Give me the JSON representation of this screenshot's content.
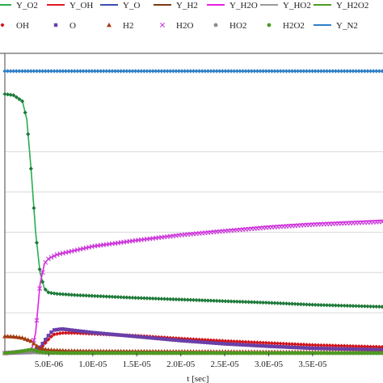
{
  "chart_data": {
    "type": "line",
    "title": "",
    "xlabel": "t [sec]",
    "ylabel": "",
    "xlim": [
      0,
      4.3e-05
    ],
    "ylim": [
      0,
      0.7
    ],
    "grid": true,
    "legend_position": "top",
    "x_ticks": [
      {
        "value": 5e-06,
        "label": "5.0E-06"
      },
      {
        "value": 1e-05,
        "label": "1.0E-05"
      },
      {
        "value": 1.5e-05,
        "label": "1.5E-05"
      },
      {
        "value": 2e-05,
        "label": "2.0E-05"
      },
      {
        "value": 2.5e-05,
        "label": "2.5E-05"
      },
      {
        "value": 3e-05,
        "label": "3.0E-05"
      },
      {
        "value": 3.5e-05,
        "label": "3.5E-05"
      }
    ],
    "y_gridlines": [
      0.1,
      0.2,
      0.3,
      0.4,
      0.5
    ],
    "series": [
      {
        "name": "Y_O2",
        "color": "#27ae4f",
        "style": "line",
        "points": [
          [
            0,
            0.643
          ],
          [
            1e-06,
            0.64
          ],
          [
            2e-06,
            0.625
          ],
          [
            2.5e-06,
            0.58
          ],
          [
            3e-06,
            0.45
          ],
          [
            3.5e-06,
            0.3
          ],
          [
            4e-06,
            0.2
          ],
          [
            4.5e-06,
            0.16
          ],
          [
            5e-06,
            0.15
          ],
          [
            6e-06,
            0.147
          ],
          [
            8e-06,
            0.144
          ],
          [
            1e-05,
            0.142
          ],
          [
            1.5e-05,
            0.137
          ],
          [
            2e-05,
            0.133
          ],
          [
            2.5e-05,
            0.129
          ],
          [
            3e-05,
            0.125
          ],
          [
            3.5e-05,
            0.12
          ],
          [
            4.3e-05,
            0.115
          ]
        ]
      },
      {
        "name": "Y_OH",
        "color": "#e0191f",
        "style": "line",
        "points": [
          [
            0,
            0
          ],
          [
            3e-06,
            0.002
          ],
          [
            4e-06,
            0.01
          ],
          [
            5e-06,
            0.035
          ],
          [
            5.5e-06,
            0.046
          ],
          [
            6.5e-06,
            0.05
          ],
          [
            8e-06,
            0.05
          ],
          [
            1e-05,
            0.048
          ],
          [
            1.5e-05,
            0.043
          ],
          [
            2e-05,
            0.036
          ],
          [
            2.5e-05,
            0.03
          ],
          [
            3e-05,
            0.025
          ],
          [
            3.5e-05,
            0.02
          ],
          [
            4.3e-05,
            0.015
          ]
        ]
      },
      {
        "name": "Y_O",
        "color": "#3a4fb0",
        "style": "line",
        "points": [
          [
            0,
            0
          ],
          [
            3e-06,
            0.002
          ],
          [
            4e-06,
            0.015
          ],
          [
            5e-06,
            0.045
          ],
          [
            5.5e-06,
            0.055
          ],
          [
            6.5e-06,
            0.058
          ],
          [
            8e-06,
            0.055
          ],
          [
            1e-05,
            0.05
          ],
          [
            1.5e-05,
            0.04
          ],
          [
            2e-05,
            0.03
          ],
          [
            2.5e-05,
            0.022
          ],
          [
            3e-05,
            0.016
          ],
          [
            3.5e-05,
            0.011
          ],
          [
            4.3e-05,
            0.007
          ]
        ]
      },
      {
        "name": "Y_H2",
        "color": "#7a3a14",
        "style": "line",
        "points": [
          [
            0,
            0.042
          ],
          [
            1e-06,
            0.041
          ],
          [
            2e-06,
            0.038
          ],
          [
            3e-06,
            0.03
          ],
          [
            3.5e-06,
            0.02
          ],
          [
            4e-06,
            0.012
          ],
          [
            5e-06,
            0.008
          ],
          [
            7e-06,
            0.006
          ],
          [
            1e-05,
            0.005
          ],
          [
            2e-05,
            0.004
          ],
          [
            3e-05,
            0.003
          ],
          [
            4.3e-05,
            0.002
          ]
        ]
      },
      {
        "name": "Y_H2O",
        "color": "#e61ee6",
        "style": "line",
        "points": [
          [
            0,
            0
          ],
          [
            3e-06,
            0.005
          ],
          [
            3.5e-06,
            0.05
          ],
          [
            4e-06,
            0.17
          ],
          [
            4.5e-06,
            0.222
          ],
          [
            5e-06,
            0.235
          ],
          [
            6e-06,
            0.245
          ],
          [
            8e-06,
            0.255
          ],
          [
            1e-05,
            0.265
          ],
          [
            1.5e-05,
            0.28
          ],
          [
            2e-05,
            0.295
          ],
          [
            2.5e-05,
            0.305
          ],
          [
            3e-05,
            0.315
          ],
          [
            3.5e-05,
            0.322
          ],
          [
            4.3e-05,
            0.33
          ]
        ]
      },
      {
        "name": "Y_HO2",
        "color": "#9a9a9a",
        "style": "line",
        "points": [
          [
            0,
            0
          ],
          [
            1e-06,
            0.001
          ],
          [
            2e-06,
            0.002
          ],
          [
            3e-06,
            0.002
          ],
          [
            4e-06,
            0.001
          ],
          [
            5e-06,
            0
          ],
          [
            4.3e-05,
            0
          ]
        ]
      },
      {
        "name": "Y_H2O2",
        "color": "#4e9a22",
        "style": "line",
        "points": [
          [
            0,
            0
          ],
          [
            1e-06,
            0.002
          ],
          [
            2e-06,
            0.005
          ],
          [
            3e-06,
            0.009
          ],
          [
            4e-06,
            0.003
          ],
          [
            5e-06,
            0.001
          ],
          [
            7e-06,
            0
          ],
          [
            4.3e-05,
            0
          ]
        ]
      },
      {
        "name": "Y_N2",
        "color": "#2f7fc8",
        "style": "line",
        "points": [
          [
            0,
            0.7
          ],
          [
            4.3e-05,
            0.7
          ]
        ]
      },
      {
        "name": "OH",
        "color": "#d0141a",
        "style": "marker",
        "marker": "diamond",
        "points": [
          [
            0,
            0
          ],
          [
            3e-06,
            0.002
          ],
          [
            4e-06,
            0.01
          ],
          [
            5e-06,
            0.035
          ],
          [
            5.5e-06,
            0.046
          ],
          [
            6.5e-06,
            0.05
          ],
          [
            8e-06,
            0.05
          ],
          [
            1e-05,
            0.048
          ],
          [
            1.5e-05,
            0.043
          ],
          [
            2e-05,
            0.036
          ],
          [
            2.5e-05,
            0.03
          ],
          [
            3e-05,
            0.025
          ],
          [
            3.5e-05,
            0.02
          ],
          [
            4.3e-05,
            0.015
          ]
        ]
      },
      {
        "name": "O",
        "color": "#6a3fa8",
        "style": "marker",
        "marker": "square",
        "points": [
          [
            0,
            0
          ],
          [
            3e-06,
            0.002
          ],
          [
            4e-06,
            0.015
          ],
          [
            5e-06,
            0.045
          ],
          [
            5.5e-06,
            0.057
          ],
          [
            6.5e-06,
            0.06
          ],
          [
            8e-06,
            0.056
          ],
          [
            1e-05,
            0.051
          ],
          [
            1.5e-05,
            0.041
          ],
          [
            2e-05,
            0.031
          ],
          [
            2.5e-05,
            0.023
          ],
          [
            3e-05,
            0.017
          ],
          [
            3.5e-05,
            0.012
          ],
          [
            4.3e-05,
            0.008
          ]
        ]
      },
      {
        "name": "H2",
        "color": "#a63c12",
        "style": "marker",
        "marker": "triangle",
        "points": [
          [
            0,
            0.042
          ],
          [
            1e-06,
            0.041
          ],
          [
            2e-06,
            0.038
          ],
          [
            3e-06,
            0.03
          ],
          [
            3.5e-06,
            0.02
          ],
          [
            4e-06,
            0.012
          ],
          [
            5e-06,
            0.008
          ],
          [
            7e-06,
            0.006
          ],
          [
            1e-05,
            0.005
          ],
          [
            2e-05,
            0.004
          ],
          [
            3e-05,
            0.003
          ],
          [
            4.3e-05,
            0.002
          ]
        ]
      },
      {
        "name": "H2O",
        "color": "#c83cd8",
        "style": "marker",
        "marker": "cross",
        "points": [
          [
            0,
            0
          ],
          [
            3e-06,
            0.005
          ],
          [
            3.5e-06,
            0.05
          ],
          [
            4e-06,
            0.17
          ],
          [
            4.5e-06,
            0.222
          ],
          [
            5e-06,
            0.235
          ],
          [
            6e-06,
            0.245
          ],
          [
            8e-06,
            0.255
          ],
          [
            1e-05,
            0.265
          ],
          [
            1.5e-05,
            0.28
          ],
          [
            2e-05,
            0.293
          ],
          [
            2.5e-05,
            0.303
          ],
          [
            3e-05,
            0.312
          ],
          [
            3.5e-05,
            0.319
          ],
          [
            4.3e-05,
            0.326
          ]
        ]
      },
      {
        "name": "HO2",
        "color": "#8a8a8a",
        "style": "marker",
        "marker": "circle",
        "points": [
          [
            0,
            0
          ],
          [
            1e-06,
            0.001
          ],
          [
            2e-06,
            0.002
          ],
          [
            3e-06,
            0.002
          ],
          [
            4e-06,
            0.001
          ],
          [
            5e-06,
            0
          ],
          [
            4.3e-05,
            0
          ]
        ]
      },
      {
        "name": "H2O2",
        "color": "#4e9a22",
        "style": "marker",
        "marker": "circle",
        "points": [
          [
            0,
            0
          ],
          [
            1e-06,
            0.002
          ],
          [
            2e-06,
            0.005
          ],
          [
            3e-06,
            0.009
          ],
          [
            4e-06,
            0.003
          ],
          [
            5e-06,
            0.001
          ],
          [
            7e-06,
            0
          ],
          [
            4.3e-05,
            0
          ]
        ]
      },
      {
        "name": "",
        "color": "#1f7a3a",
        "style": "marker",
        "marker": "diamond",
        "points": [
          [
            0,
            0.643
          ],
          [
            1e-06,
            0.64
          ],
          [
            2e-06,
            0.625
          ],
          [
            2.5e-06,
            0.58
          ],
          [
            3e-06,
            0.45
          ],
          [
            3.5e-06,
            0.3
          ],
          [
            4e-06,
            0.2
          ],
          [
            4.5e-06,
            0.16
          ],
          [
            5e-06,
            0.15
          ],
          [
            6e-06,
            0.147
          ],
          [
            8e-06,
            0.144
          ],
          [
            1e-05,
            0.142
          ],
          [
            1.5e-05,
            0.137
          ],
          [
            2e-05,
            0.133
          ],
          [
            2.5e-05,
            0.129
          ],
          [
            3e-05,
            0.125
          ],
          [
            3.5e-05,
            0.12
          ],
          [
            4.3e-05,
            0.115
          ]
        ]
      },
      {
        "name": "",
        "color": "#2f7fc8",
        "style": "marker",
        "marker": "diamond",
        "points": [
          [
            0,
            0.7
          ],
          [
            4.3e-05,
            0.7
          ]
        ]
      }
    ],
    "legend": {
      "rows": [
        [
          {
            "label": "Y_O2",
            "color": "#27ae4f",
            "symbol": "line"
          },
          {
            "label": "Y_OH",
            "color": "#e0191f",
            "symbol": "line"
          },
          {
            "label": "Y_O",
            "color": "#3a4fb0",
            "symbol": "line"
          },
          {
            "label": "Y_H2",
            "color": "#7a3a14",
            "symbol": "line"
          },
          {
            "label": "Y_H2O",
            "color": "#e61ee6",
            "symbol": "line"
          },
          {
            "label": "Y_HO2",
            "color": "#9a9a9a",
            "symbol": "line"
          },
          {
            "label": "Y_H2O2",
            "color": "#4e9a22",
            "symbol": "line"
          }
        ],
        [
          {
            "label": "OH",
            "color": "#d0141a",
            "symbol": "diamond"
          },
          {
            "label": "O",
            "color": "#6a3fa8",
            "symbol": "square"
          },
          {
            "label": "H2",
            "color": "#a63c12",
            "symbol": "triangle"
          },
          {
            "label": "H2O",
            "color": "#c83cd8",
            "symbol": "cross"
          },
          {
            "label": "HO2",
            "color": "#8a8a8a",
            "symbol": "circle"
          },
          {
            "label": "H2O2",
            "color": "#4e9a22",
            "symbol": "circle"
          },
          {
            "label": "Y_N2",
            "color": "#2f7fc8",
            "symbol": "line"
          }
        ]
      ]
    }
  }
}
